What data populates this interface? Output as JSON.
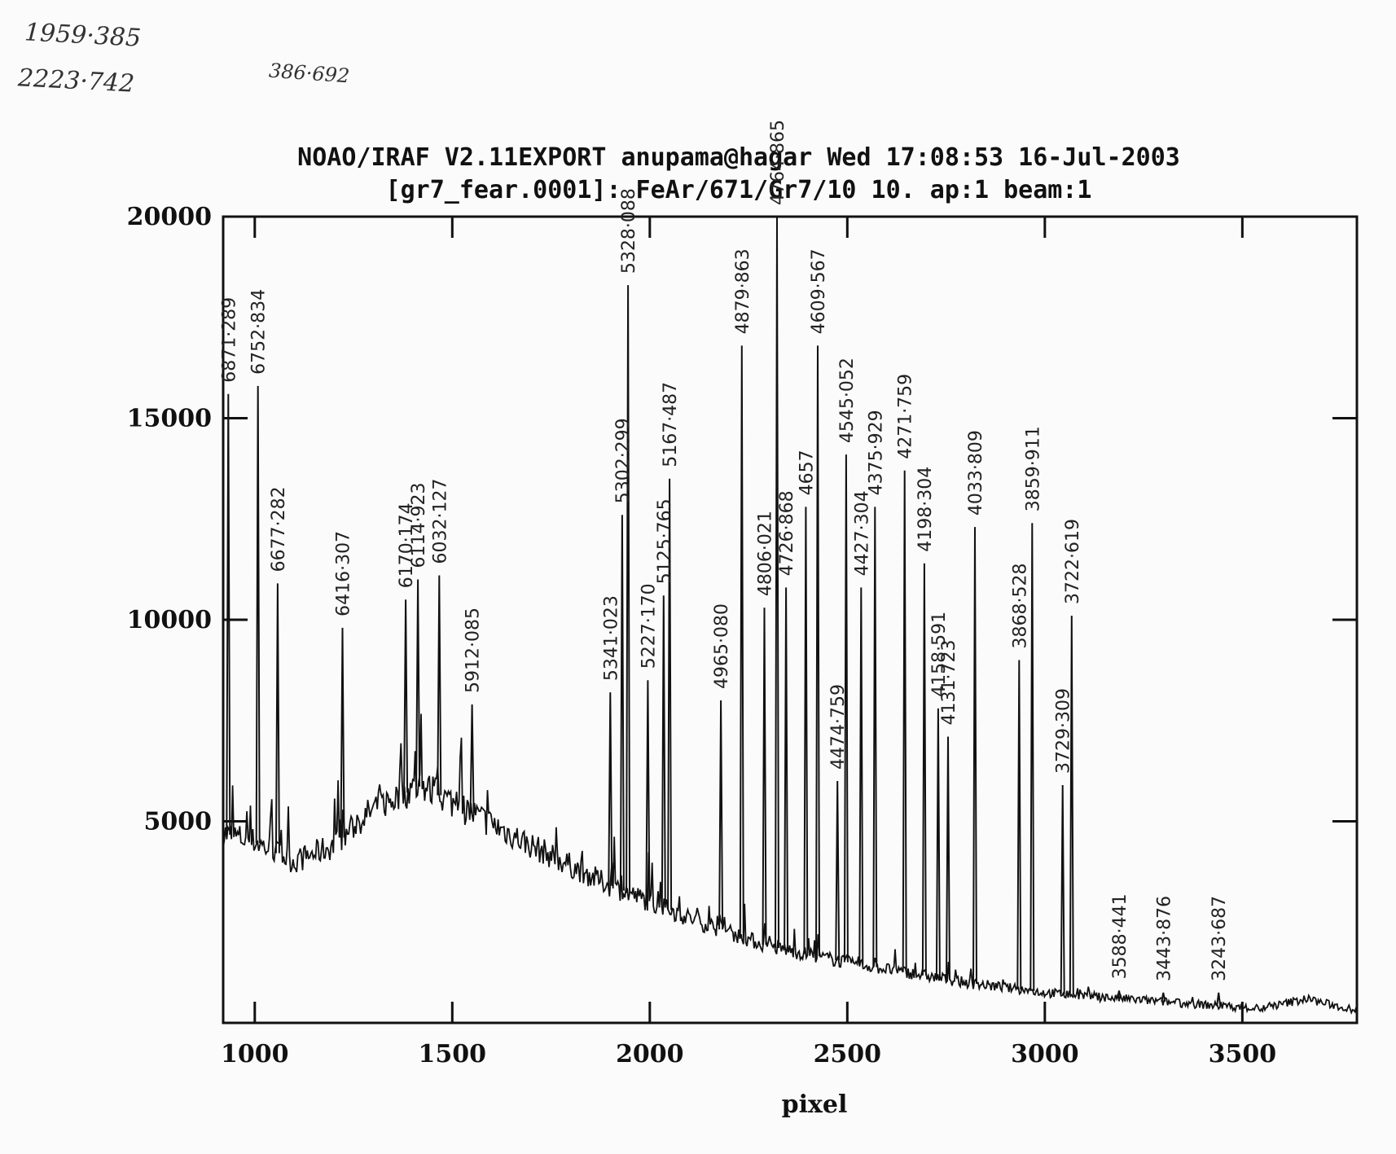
{
  "handwritten_notes": {
    "note_1": "1959·385",
    "note_2": "2223·742",
    "note_3": "386·692"
  },
  "chart_data": {
    "type": "line",
    "title": "NOAO/IRAF V2.11EXPORT anupama@hagar Wed 17:08:53 16-Jul-2003",
    "subtitle": "[gr7_fear.0001]: FeAr/671/Gr7/10 10. ap:1 beam:1",
    "xlabel": "pixel",
    "ylabel": "",
    "xlim": [
      920,
      3790
    ],
    "ylim": [
      0,
      20000
    ],
    "x_ticks": [
      1000,
      1500,
      2000,
      2500,
      3000,
      3500
    ],
    "y_ticks": [
      5000,
      10000,
      15000,
      20000
    ],
    "grid": false,
    "continuum": [
      {
        "x": 920,
        "y": 4700
      },
      {
        "x": 1000,
        "y": 4500
      },
      {
        "x": 1100,
        "y": 4000
      },
      {
        "x": 1200,
        "y": 4400
      },
      {
        "x": 1300,
        "y": 5300
      },
      {
        "x": 1420,
        "y": 5900
      },
      {
        "x": 1550,
        "y": 5200
      },
      {
        "x": 1700,
        "y": 4400
      },
      {
        "x": 1900,
        "y": 3400
      },
      {
        "x": 2100,
        "y": 2600
      },
      {
        "x": 2300,
        "y": 1900
      },
      {
        "x": 2500,
        "y": 1500
      },
      {
        "x": 2800,
        "y": 1000
      },
      {
        "x": 3000,
        "y": 750
      },
      {
        "x": 3200,
        "y": 600
      },
      {
        "x": 3400,
        "y": 450
      },
      {
        "x": 3550,
        "y": 350
      },
      {
        "x": 3660,
        "y": 600
      },
      {
        "x": 3790,
        "y": 300
      }
    ],
    "emission_lines": [
      {
        "x": 933,
        "peak": 15600,
        "label": "6871·289"
      },
      {
        "x": 1008,
        "peak": 15800,
        "label": "6752·834"
      },
      {
        "x": 1058,
        "peak": 10900,
        "label": "6677·282"
      },
      {
        "x": 1222,
        "peak": 9800,
        "label": "6416·307"
      },
      {
        "x": 1382,
        "peak": 10500,
        "label": "6170·174"
      },
      {
        "x": 1413,
        "peak": 11000,
        "label": "6114·923"
      },
      {
        "x": 1467,
        "peak": 11100,
        "label": "6032·127"
      },
      {
        "x": 1550,
        "peak": 7900,
        "label": "5912·085"
      },
      {
        "x": 1900,
        "peak": 8200,
        "label": "5341·023"
      },
      {
        "x": 1930,
        "peak": 12600,
        "label": "5302·299"
      },
      {
        "x": 1945,
        "peak": 18300,
        "label": "5328·088"
      },
      {
        "x": 1995,
        "peak": 8500,
        "label": "5227·170"
      },
      {
        "x": 2035,
        "peak": 10600,
        "label": "5125·765"
      },
      {
        "x": 2050,
        "peak": 13500,
        "label": "5167·487"
      },
      {
        "x": 2180,
        "peak": 8000,
        "label": "4965·080"
      },
      {
        "x": 2233,
        "peak": 16800,
        "label": "4879·863"
      },
      {
        "x": 2290,
        "peak": 10300,
        "label": "4806·021"
      },
      {
        "x": 2322,
        "peak": 20000,
        "label": "4764·865"
      },
      {
        "x": 2345,
        "peak": 10800,
        "label": "4726·868"
      },
      {
        "x": 2395,
        "peak": 12800,
        "label": "4657"
      },
      {
        "x": 2425,
        "peak": 16800,
        "label": "4609·567"
      },
      {
        "x": 2475,
        "peak": 6000,
        "label": "4474·759"
      },
      {
        "x": 2497,
        "peak": 14100,
        "label": "4545·052"
      },
      {
        "x": 2535,
        "peak": 10800,
        "label": "4427·304"
      },
      {
        "x": 2570,
        "peak": 12800,
        "label": "4375·929"
      },
      {
        "x": 2645,
        "peak": 13700,
        "label": "4271·759"
      },
      {
        "x": 2695,
        "peak": 11400,
        "label": "4198·304"
      },
      {
        "x": 2730,
        "peak": 7800,
        "label": "4158·591"
      },
      {
        "x": 2755,
        "peak": 7100,
        "label": "4131·723"
      },
      {
        "x": 2823,
        "peak": 12300,
        "label": "4033·809"
      },
      {
        "x": 2935,
        "peak": 9000,
        "label": "3868·528"
      },
      {
        "x": 2968,
        "peak": 12400,
        "label": "3859·911"
      },
      {
        "x": 3045,
        "peak": 5900,
        "label": "3729·309"
      },
      {
        "x": 3068,
        "peak": 10100,
        "label": "3722·619"
      },
      {
        "x": 3188,
        "peak": 800,
        "label": "3588·441"
      },
      {
        "x": 3300,
        "peak": 750,
        "label": "3443·876"
      },
      {
        "x": 3440,
        "peak": 750,
        "label": "3243·687"
      }
    ]
  }
}
